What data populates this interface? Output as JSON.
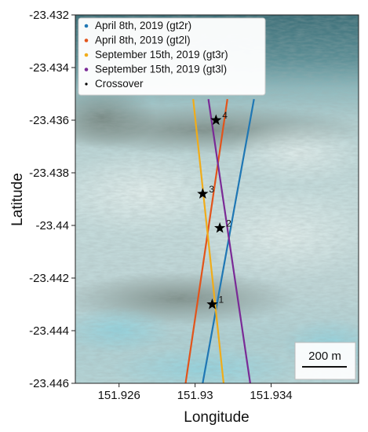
{
  "chart_data": {
    "type": "line",
    "title": "",
    "xlabel": "Longitude",
    "ylabel": "Latitude",
    "xlim": [
      151.9237,
      151.9386
    ],
    "ylim": [
      -23.446,
      -23.432
    ],
    "xticks": [
      151.926,
      151.93,
      151.934
    ],
    "xtick_labels": [
      "151.926",
      "151.93",
      "151.934"
    ],
    "yticks": [
      -23.432,
      -23.434,
      -23.436,
      -23.438,
      -23.44,
      -23.442,
      -23.444,
      -23.446
    ],
    "ytick_labels": [
      "-23.432",
      "-23.434",
      "-23.436",
      "-23.438",
      "-23.44",
      "-23.442",
      "-23.444",
      "-23.446"
    ],
    "grid": false,
    "legend_placement": "top-left",
    "background": "satellite image of reef flat",
    "series": [
      {
        "name": "April 8th, 2019 (gt2r)",
        "color": "#1f77b4",
        "x": [
          151.9304,
          151.9331
        ],
        "y": [
          -23.446,
          -23.4352
        ]
      },
      {
        "name": "April 8th, 2019 (gt2l)",
        "color": "#e2541b",
        "x": [
          151.9295,
          151.9317
        ],
        "y": [
          -23.446,
          -23.4352
        ]
      },
      {
        "name": "September 15th, 2019 (gt3r)",
        "color": "#f0ac1a",
        "x": [
          151.9315,
          151.9299
        ],
        "y": [
          -23.446,
          -23.4352
        ]
      },
      {
        "name": "September 15th, 2019 (gt3l)",
        "color": "#7a2a96",
        "x": [
          151.9329,
          151.9307
        ],
        "y": [
          -23.446,
          -23.4352
        ]
      }
    ],
    "crossovers": {
      "name": "Crossover",
      "points": [
        {
          "label": "1",
          "x": 151.9309,
          "y": -23.443
        },
        {
          "label": "2",
          "x": 151.9313,
          "y": -23.4401
        },
        {
          "label": "3",
          "x": 151.9304,
          "y": -23.4388
        },
        {
          "label": "4",
          "x": 151.9311,
          "y": -23.436
        }
      ]
    },
    "scale_bar": {
      "label": "200 m",
      "meters": 200
    }
  }
}
